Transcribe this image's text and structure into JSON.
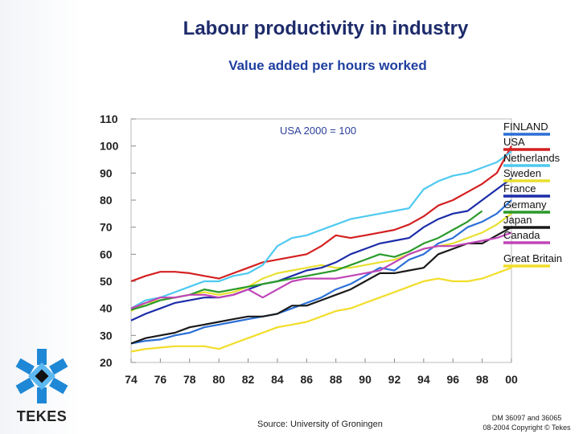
{
  "header": {
    "title": "Labour productivity in industry",
    "subtitle": "Value added per hours worked"
  },
  "footer": {
    "source": "Source: University of Groningen",
    "copyright_line1": "DM 36097 and 36065",
    "copyright_line2": "08-2004 Copyright © Tekes"
  },
  "logo": {
    "text": "TEKES",
    "icon": "tekes-snowflake-icon"
  },
  "chart_data": {
    "type": "line",
    "annotation": "USA 2000 = 100",
    "ylim": [
      20,
      110
    ],
    "xlim": [
      1974,
      2000
    ],
    "yticks": [
      "20",
      "30",
      "40",
      "50",
      "60",
      "70",
      "80",
      "90",
      "100",
      "110"
    ],
    "xticks": [
      "74",
      "76",
      "78",
      "80",
      "82",
      "84",
      "86",
      "88",
      "90",
      "92",
      "94",
      "96",
      "98",
      "00"
    ],
    "x": [
      1974,
      1975,
      1976,
      1977,
      1978,
      1979,
      1980,
      1981,
      1982,
      1983,
      1984,
      1985,
      1986,
      1987,
      1988,
      1989,
      1990,
      1991,
      1992,
      1993,
      1994,
      1995,
      1996,
      1997,
      1998,
      1999,
      2000
    ],
    "series": [
      {
        "name": "FINLAND",
        "color": "#2a6fd6",
        "values": [
          27,
          28,
          28.5,
          30,
          31,
          33,
          34,
          35,
          36,
          37,
          38,
          40,
          42,
          44,
          47,
          49,
          52,
          55,
          54,
          58,
          60,
          64,
          66,
          70,
          72,
          75,
          80
        ]
      },
      {
        "name": "USA",
        "color": "#d42020",
        "values": [
          50,
          52,
          53.5,
          53.5,
          53,
          52,
          51,
          53,
          55,
          57,
          58,
          59,
          60,
          63,
          67,
          66,
          67,
          68,
          69,
          71,
          74,
          78,
          80,
          83,
          86,
          90,
          100
        ]
      },
      {
        "name": "Netherlands",
        "color": "#4ec9f0",
        "values": [
          40,
          43,
          44,
          46,
          48,
          50,
          50,
          52,
          53,
          56,
          63,
          66,
          67,
          69,
          71,
          73,
          74,
          75,
          76,
          77,
          84,
          87,
          89,
          90,
          92,
          94,
          98
        ]
      },
      {
        "name": "Sweden",
        "color": "#e8e030",
        "values": [
          39,
          42,
          43,
          44,
          45,
          46,
          45,
          46,
          48,
          51,
          53,
          54,
          55,
          56,
          55,
          55,
          56,
          57,
          58,
          60,
          62,
          63,
          64,
          66,
          68,
          71,
          75
        ]
      },
      {
        "name": "France",
        "color": "#1c2ca8",
        "values": [
          35.5,
          38,
          40,
          42,
          43,
          44,
          44,
          45,
          47,
          49,
          50,
          52,
          54,
          55,
          57,
          60,
          62,
          64,
          65,
          66,
          70,
          73,
          75,
          76,
          80,
          84,
          88
        ]
      },
      {
        "name": "Germany",
        "color": "#2a9a2a",
        "values": [
          39.5,
          41,
          43,
          44,
          45,
          47,
          46,
          47,
          48,
          49,
          50,
          51,
          52,
          53,
          54,
          56,
          58,
          60,
          59,
          61,
          64,
          66,
          69,
          72,
          76,
          null,
          null
        ]
      },
      {
        "name": "Japan",
        "color": "#1a1a1a",
        "values": [
          27,
          29,
          30,
          31,
          33,
          34,
          35,
          36,
          37,
          37,
          38,
          41,
          41,
          43,
          45,
          47,
          50,
          53,
          53,
          54,
          55,
          60,
          62,
          64,
          64,
          67,
          70
        ]
      },
      {
        "name": "Canada",
        "color": "#c045b8",
        "values": [
          40,
          42,
          44,
          44,
          45,
          45,
          44,
          45,
          47,
          44,
          47,
          50,
          51,
          51,
          51,
          52,
          53,
          54,
          57,
          60,
          62,
          63,
          63,
          64,
          65,
          66,
          68
        ]
      },
      {
        "name": "Great Britain",
        "color": "#f2dd28",
        "values": [
          24,
          25,
          25.5,
          26,
          26,
          26,
          25,
          27,
          29,
          31,
          33,
          34,
          35,
          37,
          39,
          40,
          42,
          44,
          46,
          48,
          50,
          51,
          50,
          50,
          51,
          53,
          55
        ]
      }
    ]
  }
}
